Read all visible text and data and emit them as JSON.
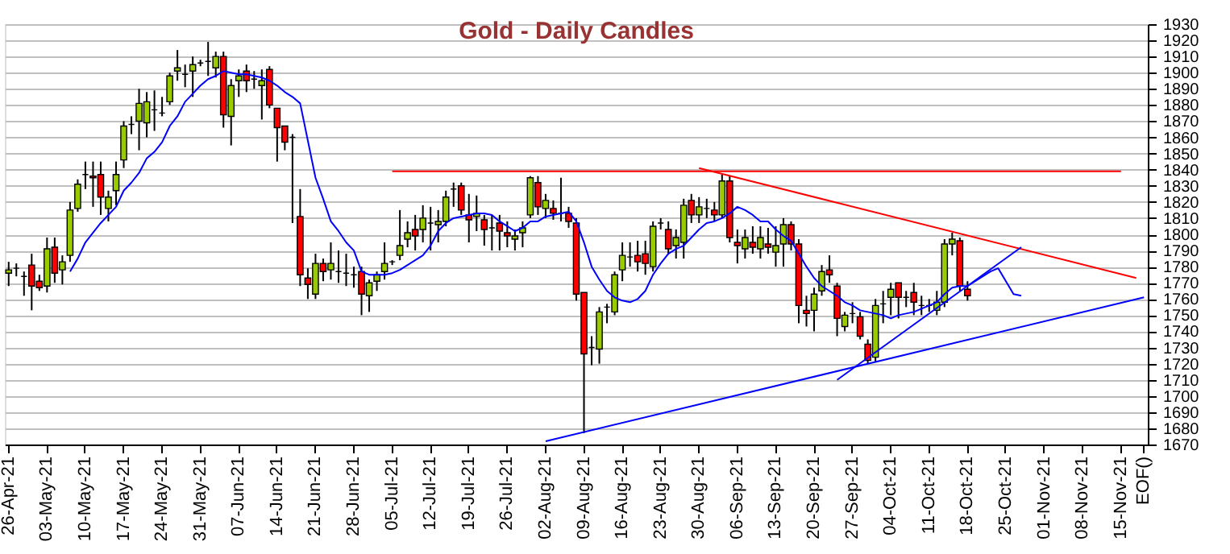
{
  "chart_data": {
    "type": "candlestick",
    "title": "Gold - Daily Candles",
    "categories": [
      "26-Apr-21",
      null,
      null,
      null,
      null,
      "03-May-21",
      null,
      null,
      null,
      null,
      "10-May-21",
      null,
      null,
      null,
      null,
      "17-May-21",
      null,
      null,
      null,
      null,
      "24-May-21",
      null,
      null,
      null,
      null,
      "31-May-21",
      null,
      null,
      null,
      null,
      "07-Jun-21",
      null,
      null,
      null,
      null,
      "14-Jun-21",
      null,
      null,
      null,
      null,
      "21-Jun-21",
      null,
      null,
      null,
      null,
      "28-Jun-21",
      null,
      null,
      null,
      null,
      "05-Jul-21",
      null,
      null,
      null,
      null,
      "12-Jul-21",
      null,
      null,
      null,
      null,
      "19-Jul-21",
      null,
      null,
      null,
      null,
      "26-Jul-21",
      null,
      null,
      null,
      null,
      "02-Aug-21",
      null,
      null,
      null,
      null,
      "09-Aug-21",
      null,
      null,
      null,
      null,
      "16-Aug-21",
      null,
      null,
      null,
      null,
      "23-Aug-21",
      null,
      null,
      null,
      null,
      "30-Aug-21",
      null,
      null,
      null,
      null,
      "06-Sep-21",
      null,
      null,
      null,
      null,
      "13-Sep-21",
      null,
      null,
      null,
      null,
      "20-Sep-21",
      null,
      null,
      null,
      null,
      "27-Sep-21",
      null,
      null,
      null,
      null,
      "04-Oct-21",
      null,
      null,
      null,
      null,
      "11-Oct-21",
      null,
      null,
      null,
      null,
      "18-Oct-21",
      null,
      null,
      null,
      null,
      "25-Oct-21",
      null,
      null,
      null,
      null,
      "01-Nov-21",
      null,
      null,
      null,
      null,
      "08-Nov-21",
      null,
      null,
      null,
      null,
      "15-Nov-21",
      null,
      null,
      "EOF()"
    ],
    "colors": [
      "#99cc00",
      "#000000",
      "#000000",
      "#ff0000",
      "#ff0000",
      "#99cc00",
      "#ff0000",
      "#99cc00",
      "#99cc00",
      "#99cc00",
      "#000000",
      "#ff0000",
      "#ff0000",
      "#99cc00",
      "#99cc00",
      "#99cc00",
      "#000000",
      "#99cc00",
      "#99cc00",
      "#000000",
      "#000000",
      "#99cc00",
      "#99cc00",
      "#000000",
      "#99cc00",
      "#000000",
      "#000000",
      "#99cc00",
      "#ff0000",
      "#99cc00",
      "#99cc00",
      "#ff0000",
      "#000000",
      "#99cc00",
      "#ff0000",
      "#ff0000",
      "#ff0000",
      "#000000",
      "#ff0000",
      "#ff0000",
      "#99cc00",
      "#ff0000",
      "#99cc00",
      "#000000",
      "#000000",
      "#000000",
      "#ff0000",
      "#99cc00",
      "#99cc00",
      "#99cc00",
      "#000000",
      "#99cc00",
      "#99cc00",
      "#ff0000",
      "#99cc00",
      "#000000",
      "#99cc00",
      "#99cc00",
      "#000000",
      "#ff0000",
      "#ff0000",
      "#99cc00",
      "#ff0000",
      "#000000",
      "#ff0000",
      "#ff0000",
      "#99cc00",
      "#99cc00",
      "#99cc00",
      "#ff0000",
      "#99cc00",
      "#ff0000",
      "#000000",
      "#ff0000",
      "#ff0000",
      "#ff0000",
      "#000000",
      "#99cc00",
      "#000000",
      "#99cc00",
      "#99cc00",
      "#000000",
      "#ff0000",
      "#ff0000",
      "#99cc00",
      "#000000",
      "#ff0000",
      "#99cc00",
      "#99cc00",
      "#ff0000",
      "#99cc00",
      "#000000",
      "#ff0000",
      "#99cc00",
      "#ff0000",
      "#ff0000",
      "#99cc00",
      "#ff0000",
      "#99cc00",
      "#ff0000",
      "#99cc00",
      "#99cc00",
      "#ff0000",
      "#ff0000",
      "#ff0000",
      "#99cc00",
      "#99cc00",
      "#ff0000",
      "#ff0000",
      "#99cc00",
      "#000000",
      "#ff0000",
      "#ff0000",
      "#99cc00",
      "#000000",
      "#99cc00",
      "#ff0000",
      "#000000",
      "#ff0000",
      "#000000",
      "#000000",
      "#99cc00",
      "#99cc00",
      "#99cc00",
      "#ff0000",
      "#ff0000",
      null,
      null,
      null,
      null,
      null,
      null,
      null,
      null,
      null,
      null,
      null,
      null,
      null,
      null,
      null,
      null,
      null,
      null,
      null,
      null,
      null,
      null,
      null
    ],
    "ohlc": [
      [
        1776,
        1783,
        1768,
        1778
      ],
      [
        1779,
        1782,
        1774,
        1779
      ],
      [
        1774,
        1777,
        1762,
        1774
      ],
      [
        1781,
        1788,
        1753,
        1768
      ],
      [
        1771,
        1775,
        1765,
        1767
      ],
      [
        1768,
        1798,
        1764,
        1791
      ],
      [
        1792,
        1798,
        1770,
        1776
      ],
      [
        1778,
        1787,
        1769,
        1783
      ],
      [
        1787,
        1820,
        1783,
        1815
      ],
      [
        1816,
        1834,
        1814,
        1831
      ],
      [
        1837,
        1845,
        1828,
        1837
      ],
      [
        1836,
        1845,
        1817,
        1835
      ],
      [
        1837,
        1845,
        1812,
        1823
      ],
      [
        1816,
        1827,
        1808,
        1823
      ],
      [
        1827,
        1845,
        1818,
        1837
      ],
      [
        1846,
        1870,
        1841,
        1867
      ],
      [
        1868,
        1873,
        1862,
        1868
      ],
      [
        1870,
        1890,
        1852,
        1881
      ],
      [
        1869,
        1888,
        1860,
        1882
      ],
      [
        1877,
        1889,
        1864,
        1877
      ],
      [
        1875,
        1885,
        1873,
        1875
      ],
      [
        1882,
        1900,
        1880,
        1898
      ],
      [
        1901,
        1914,
        1895,
        1903
      ],
      [
        1899,
        1905,
        1891,
        1899
      ],
      [
        1901,
        1910,
        1885,
        1905
      ],
      [
        1906,
        1908,
        1904,
        1906
      ],
      [
        1907,
        1919,
        1898,
        1907
      ],
      [
        1903,
        1913,
        1897,
        1910
      ],
      [
        1910,
        1913,
        1866,
        1874
      ],
      [
        1873,
        1896,
        1855,
        1892
      ],
      [
        1895,
        1902,
        1885,
        1898
      ],
      [
        1901,
        1905,
        1888,
        1895
      ],
      [
        1896,
        1901,
        1890,
        1896
      ],
      [
        1892,
        1902,
        1871,
        1895
      ],
      [
        1902,
        1904,
        1878,
        1880
      ],
      [
        1878,
        1878,
        1845,
        1866
      ],
      [
        1867,
        1867,
        1852,
        1857
      ],
      [
        1860,
        1862,
        1807,
        1860
      ],
      [
        1811,
        1828,
        1768,
        1775
      ],
      [
        1773,
        1779,
        1760,
        1769
      ],
      [
        1763,
        1788,
        1760,
        1782
      ],
      [
        1782,
        1785,
        1771,
        1777
      ],
      [
        1778,
        1795,
        1772,
        1782
      ],
      [
        1777,
        1790,
        1770,
        1777
      ],
      [
        1776,
        1788,
        1768,
        1776
      ],
      [
        1775,
        1780,
        1767,
        1775
      ],
      [
        1777,
        1780,
        1750,
        1763
      ],
      [
        1762,
        1772,
        1752,
        1770
      ],
      [
        1771,
        1777,
        1765,
        1775
      ],
      [
        1777,
        1795,
        1772,
        1782
      ],
      [
        1783,
        1784,
        1781,
        1783
      ],
      [
        1787,
        1815,
        1784,
        1793
      ],
      [
        1797,
        1808,
        1792,
        1801
      ],
      [
        1803,
        1812,
        1790,
        1799
      ],
      [
        1803,
        1818,
        1795,
        1810
      ],
      [
        1807,
        1817,
        1790,
        1807
      ],
      [
        1806,
        1815,
        1795,
        1808
      ],
      [
        1808,
        1827,
        1805,
        1823
      ],
      [
        1828,
        1832,
        1817,
        1828
      ],
      [
        1830,
        1832,
        1812,
        1815
      ],
      [
        1812,
        1825,
        1795,
        1809
      ],
      [
        1811,
        1824,
        1802,
        1813
      ],
      [
        1809,
        1812,
        1793,
        1803
      ],
      [
        1804,
        1812,
        1790,
        1804
      ],
      [
        1807,
        1812,
        1790,
        1802
      ],
      [
        1801,
        1808,
        1792,
        1799
      ],
      [
        1797,
        1803,
        1790,
        1799
      ],
      [
        1801,
        1808,
        1792,
        1804
      ],
      [
        1812,
        1836,
        1810,
        1835
      ],
      [
        1832,
        1836,
        1812,
        1817
      ],
      [
        1816,
        1825,
        1810,
        1821
      ],
      [
        1816,
        1821,
        1809,
        1813
      ],
      [
        1813,
        1835,
        1808,
        1813
      ],
      [
        1813,
        1817,
        1804,
        1808
      ],
      [
        1807,
        1810,
        1759,
        1763
      ],
      [
        1764,
        1764,
        1677,
        1726
      ],
      [
        1730,
        1737,
        1719,
        1730
      ],
      [
        1729,
        1755,
        1720,
        1752
      ],
      [
        1755,
        1757,
        1745,
        1755
      ],
      [
        1752,
        1777,
        1750,
        1775
      ],
      [
        1778,
        1795,
        1771,
        1787
      ],
      [
        1786,
        1795,
        1780,
        1786
      ],
      [
        1787,
        1796,
        1777,
        1783
      ],
      [
        1788,
        1796,
        1775,
        1782
      ],
      [
        1780,
        1808,
        1777,
        1805
      ],
      [
        1807,
        1810,
        1803,
        1807
      ],
      [
        1803,
        1808,
        1788,
        1791
      ],
      [
        1793,
        1803,
        1785,
        1798
      ],
      [
        1795,
        1822,
        1785,
        1818
      ],
      [
        1821,
        1825,
        1807,
        1812
      ],
      [
        1812,
        1823,
        1807,
        1817
      ],
      [
        1816,
        1822,
        1810,
        1816
      ],
      [
        1815,
        1820,
        1808,
        1812
      ],
      [
        1812,
        1837,
        1810,
        1833
      ],
      [
        1833,
        1836,
        1795,
        1798
      ],
      [
        1795,
        1803,
        1782,
        1793
      ],
      [
        1791,
        1803,
        1785,
        1798
      ],
      [
        1795,
        1805,
        1788,
        1792
      ],
      [
        1791,
        1805,
        1785,
        1798
      ],
      [
        1794,
        1804,
        1788,
        1792
      ],
      [
        1789,
        1805,
        1780,
        1793
      ],
      [
        1794,
        1810,
        1780,
        1806
      ],
      [
        1806,
        1808,
        1790,
        1794
      ],
      [
        1794,
        1797,
        1745,
        1756
      ],
      [
        1753,
        1762,
        1743,
        1751
      ],
      [
        1753,
        1767,
        1740,
        1763
      ],
      [
        1765,
        1781,
        1762,
        1777
      ],
      [
        1778,
        1787,
        1770,
        1775
      ],
      [
        1768,
        1770,
        1737,
        1748
      ],
      [
        1743,
        1752,
        1740,
        1750
      ],
      [
        1751,
        1758,
        1745,
        1751
      ],
      [
        1749,
        1752,
        1735,
        1737
      ],
      [
        1732,
        1735,
        1720,
        1722
      ],
      [
        1724,
        1760,
        1721,
        1756
      ],
      [
        1757,
        1765,
        1745,
        1757
      ],
      [
        1761,
        1770,
        1750,
        1766
      ],
      [
        1770,
        1770,
        1748,
        1761
      ],
      [
        1761,
        1765,
        1755,
        1761
      ],
      [
        1764,
        1770,
        1750,
        1758
      ],
      [
        1756,
        1762,
        1750,
        1756
      ],
      [
        1756,
        1760,
        1752,
        1756
      ],
      [
        1753,
        1765,
        1750,
        1758
      ],
      [
        1758,
        1797,
        1755,
        1794
      ],
      [
        1794,
        1801,
        1787,
        1797
      ],
      [
        1796,
        1798,
        1765,
        1768
      ],
      [
        1766,
        1771,
        1759,
        1762
      ],
      null,
      null,
      null,
      null,
      null,
      null,
      null,
      null,
      null,
      null,
      null,
      null,
      null,
      null,
      null,
      null,
      null,
      null,
      null,
      null,
      null,
      null,
      null
    ],
    "series": [
      {
        "type": "line",
        "color": "#0000ff",
        "values": [
          null,
          null,
          null,
          null,
          null,
          null,
          null,
          null,
          1777,
          1785,
          1795,
          1801,
          1807,
          1812,
          1817,
          1827,
          1832,
          1838,
          1847,
          1851,
          1857,
          1867,
          1873,
          1882,
          1887,
          1892,
          1896,
          1898,
          1901,
          1900,
          1899,
          1899,
          1898,
          1897,
          1895,
          1892,
          1888,
          1885,
          1881,
          1858,
          1835,
          1822,
          1808,
          1802,
          1795,
          1790,
          1777,
          1775,
          1775,
          1775,
          1776,
          1778,
          1781,
          1784,
          1787,
          1793,
          1802,
          1807,
          1810,
          1811,
          1812,
          1813,
          1813,
          1812,
          1808,
          1805,
          1802,
          1804,
          1808,
          1808,
          1811,
          1812,
          1813,
          1814,
          1808,
          1795,
          1780,
          1772,
          1765,
          1761,
          1759,
          1758,
          1760,
          1765,
          1775,
          1782,
          1788,
          1791,
          1793,
          1798,
          1803,
          1807,
          1808,
          1810,
          1813,
          1817,
          1815,
          1812,
          1808,
          1808,
          1803,
          1799,
          1796,
          1788,
          1780,
          1773,
          1768,
          1765,
          1762,
          1758,
          1756,
          1753,
          1752,
          1751,
          1750,
          1748,
          1750,
          1751,
          1752,
          1754,
          1756,
          1758,
          1763,
          1767,
          1768,
          1768,
          1771,
          1774,
          1777,
          1779,
          1771,
          1763,
          1762,
          null,
          null,
          null,
          null,
          null,
          null,
          null,
          null,
          null,
          null,
          null,
          null,
          null,
          null,
          null,
          null
        ]
      },
      {
        "type": "line",
        "color": "#ff0000",
        "values": [
          null,
          null,
          null,
          null,
          null,
          null,
          null,
          null,
          null,
          null,
          null,
          null,
          null,
          null,
          null,
          null,
          null,
          null,
          null,
          null,
          null,
          null,
          null,
          null,
          null,
          null,
          null,
          null,
          null,
          null,
          null,
          null,
          null,
          null,
          null,
          null,
          null,
          null,
          null,
          null,
          null,
          null,
          null,
          null,
          null,
          null,
          null,
          null,
          null,
          null,
          1839,
          null,
          null,
          null,
          null,
          null,
          null,
          null,
          null,
          null,
          null,
          null,
          null,
          null,
          null,
          null,
          null,
          null,
          null,
          null,
          null,
          null,
          null,
          null,
          null,
          null,
          null,
          null,
          null,
          null,
          null,
          null,
          null,
          null,
          null,
          null,
          null,
          null,
          null,
          null,
          null,
          null,
          null,
          null,
          null,
          null,
          null,
          null,
          null,
          null,
          null,
          null,
          null,
          null,
          null,
          null,
          null,
          null,
          null,
          null,
          null,
          null,
          null,
          null,
          null,
          null,
          null,
          null,
          null,
          null,
          null,
          null,
          null,
          null,
          null,
          null,
          null,
          null,
          null,
          null,
          null,
          null,
          null,
          null,
          null,
          null,
          null,
          null,
          null,
          null,
          null,
          null,
          null,
          null,
          null,
          1839,
          null,
          null,
          null
        ]
      },
      {
        "type": "line",
        "color": "#ff0000",
        "values": [
          null,
          null,
          null,
          null,
          null,
          null,
          null,
          null,
          null,
          null,
          null,
          null,
          null,
          null,
          null,
          null,
          null,
          null,
          null,
          null,
          null,
          null,
          null,
          null,
          null,
          null,
          null,
          null,
          null,
          null,
          null,
          null,
          null,
          null,
          null,
          null,
          null,
          null,
          null,
          null,
          null,
          null,
          null,
          null,
          null,
          null,
          null,
          null,
          null,
          null,
          null,
          null,
          null,
          null,
          null,
          null,
          null,
          null,
          null,
          null,
          null,
          null,
          null,
          null,
          null,
          null,
          null,
          null,
          null,
          null,
          null,
          null,
          null,
          null,
          null,
          null,
          null,
          null,
          null,
          null,
          null,
          null,
          null,
          null,
          null,
          null,
          null,
          null,
          null,
          null,
          1841,
          null,
          null,
          null,
          null,
          null,
          null,
          null,
          null,
          null,
          null,
          null,
          null,
          null,
          null,
          null,
          null,
          null,
          null,
          null,
          null,
          null,
          null,
          null,
          null,
          null,
          null,
          null,
          null,
          null,
          null,
          null,
          null,
          null,
          null,
          null,
          null,
          null,
          null,
          null,
          null,
          null,
          null,
          null,
          null,
          null,
          null,
          null,
          null,
          null,
          null,
          null,
          null,
          null,
          null,
          null,
          null,
          1773,
          null
        ]
      },
      {
        "type": "line",
        "color": "#0000ff",
        "values": [
          null,
          null,
          null,
          null,
          null,
          null,
          null,
          null,
          null,
          null,
          null,
          null,
          null,
          null,
          null,
          null,
          null,
          null,
          null,
          null,
          null,
          null,
          null,
          null,
          null,
          null,
          null,
          null,
          null,
          null,
          null,
          null,
          null,
          null,
          null,
          null,
          null,
          null,
          null,
          null,
          null,
          null,
          null,
          null,
          null,
          null,
          null,
          null,
          null,
          null,
          null,
          null,
          null,
          null,
          null,
          null,
          null,
          null,
          null,
          null,
          null,
          null,
          null,
          null,
          null,
          null,
          null,
          null,
          null,
          null,
          1672,
          null,
          null,
          null,
          null,
          null,
          null,
          null,
          null,
          null,
          null,
          null,
          null,
          null,
          null,
          null,
          null,
          null,
          null,
          null,
          null,
          null,
          null,
          null,
          null,
          null,
          null,
          null,
          null,
          null,
          null,
          null,
          null,
          null,
          null,
          null,
          null,
          null,
          null,
          null,
          null,
          null,
          null,
          null,
          null,
          null,
          null,
          null,
          null,
          null,
          null,
          null,
          null,
          null,
          null,
          null,
          null,
          null,
          null,
          null,
          null,
          null,
          null,
          null,
          null,
          null,
          null,
          null,
          null,
          null,
          null,
          null,
          null,
          null,
          null,
          null,
          null,
          null,
          1761
        ]
      },
      {
        "type": "line",
        "color": "#0000ff",
        "values": [
          null,
          null,
          null,
          null,
          null,
          null,
          null,
          null,
          null,
          null,
          null,
          null,
          null,
          null,
          null,
          null,
          null,
          null,
          null,
          null,
          null,
          null,
          null,
          null,
          null,
          null,
          null,
          null,
          null,
          null,
          null,
          null,
          null,
          null,
          null,
          null,
          null,
          null,
          null,
          null,
          null,
          null,
          null,
          null,
          null,
          null,
          null,
          null,
          null,
          null,
          null,
          null,
          null,
          null,
          null,
          null,
          null,
          null,
          null,
          null,
          null,
          null,
          null,
          null,
          null,
          null,
          null,
          null,
          null,
          null,
          null,
          null,
          null,
          null,
          null,
          null,
          null,
          null,
          null,
          null,
          null,
          null,
          null,
          null,
          null,
          null,
          null,
          null,
          null,
          null,
          null,
          null,
          null,
          null,
          null,
          null,
          null,
          null,
          null,
          null,
          null,
          null,
          null,
          null,
          null,
          null,
          null,
          null,
          1710,
          null,
          null,
          null,
          null,
          null,
          null,
          null,
          null,
          null,
          null,
          null,
          null,
          null,
          null,
          null,
          null,
          null,
          null,
          null,
          null,
          null,
          null,
          null,
          1792,
          null,
          null,
          null,
          null,
          null,
          null,
          null,
          null,
          null,
          null,
          null,
          null,
          null,
          null,
          null,
          null
        ]
      }
    ],
    "ylim": [
      1670,
      1930
    ],
    "yticks": [
      1670,
      1680,
      1690,
      1700,
      1710,
      1720,
      1730,
      1740,
      1750,
      1760,
      1770,
      1780,
      1790,
      1800,
      1810,
      1820,
      1830,
      1840,
      1850,
      1860,
      1870,
      1880,
      1890,
      1900,
      1910,
      1920,
      1930
    ],
    "grid": "y"
  }
}
